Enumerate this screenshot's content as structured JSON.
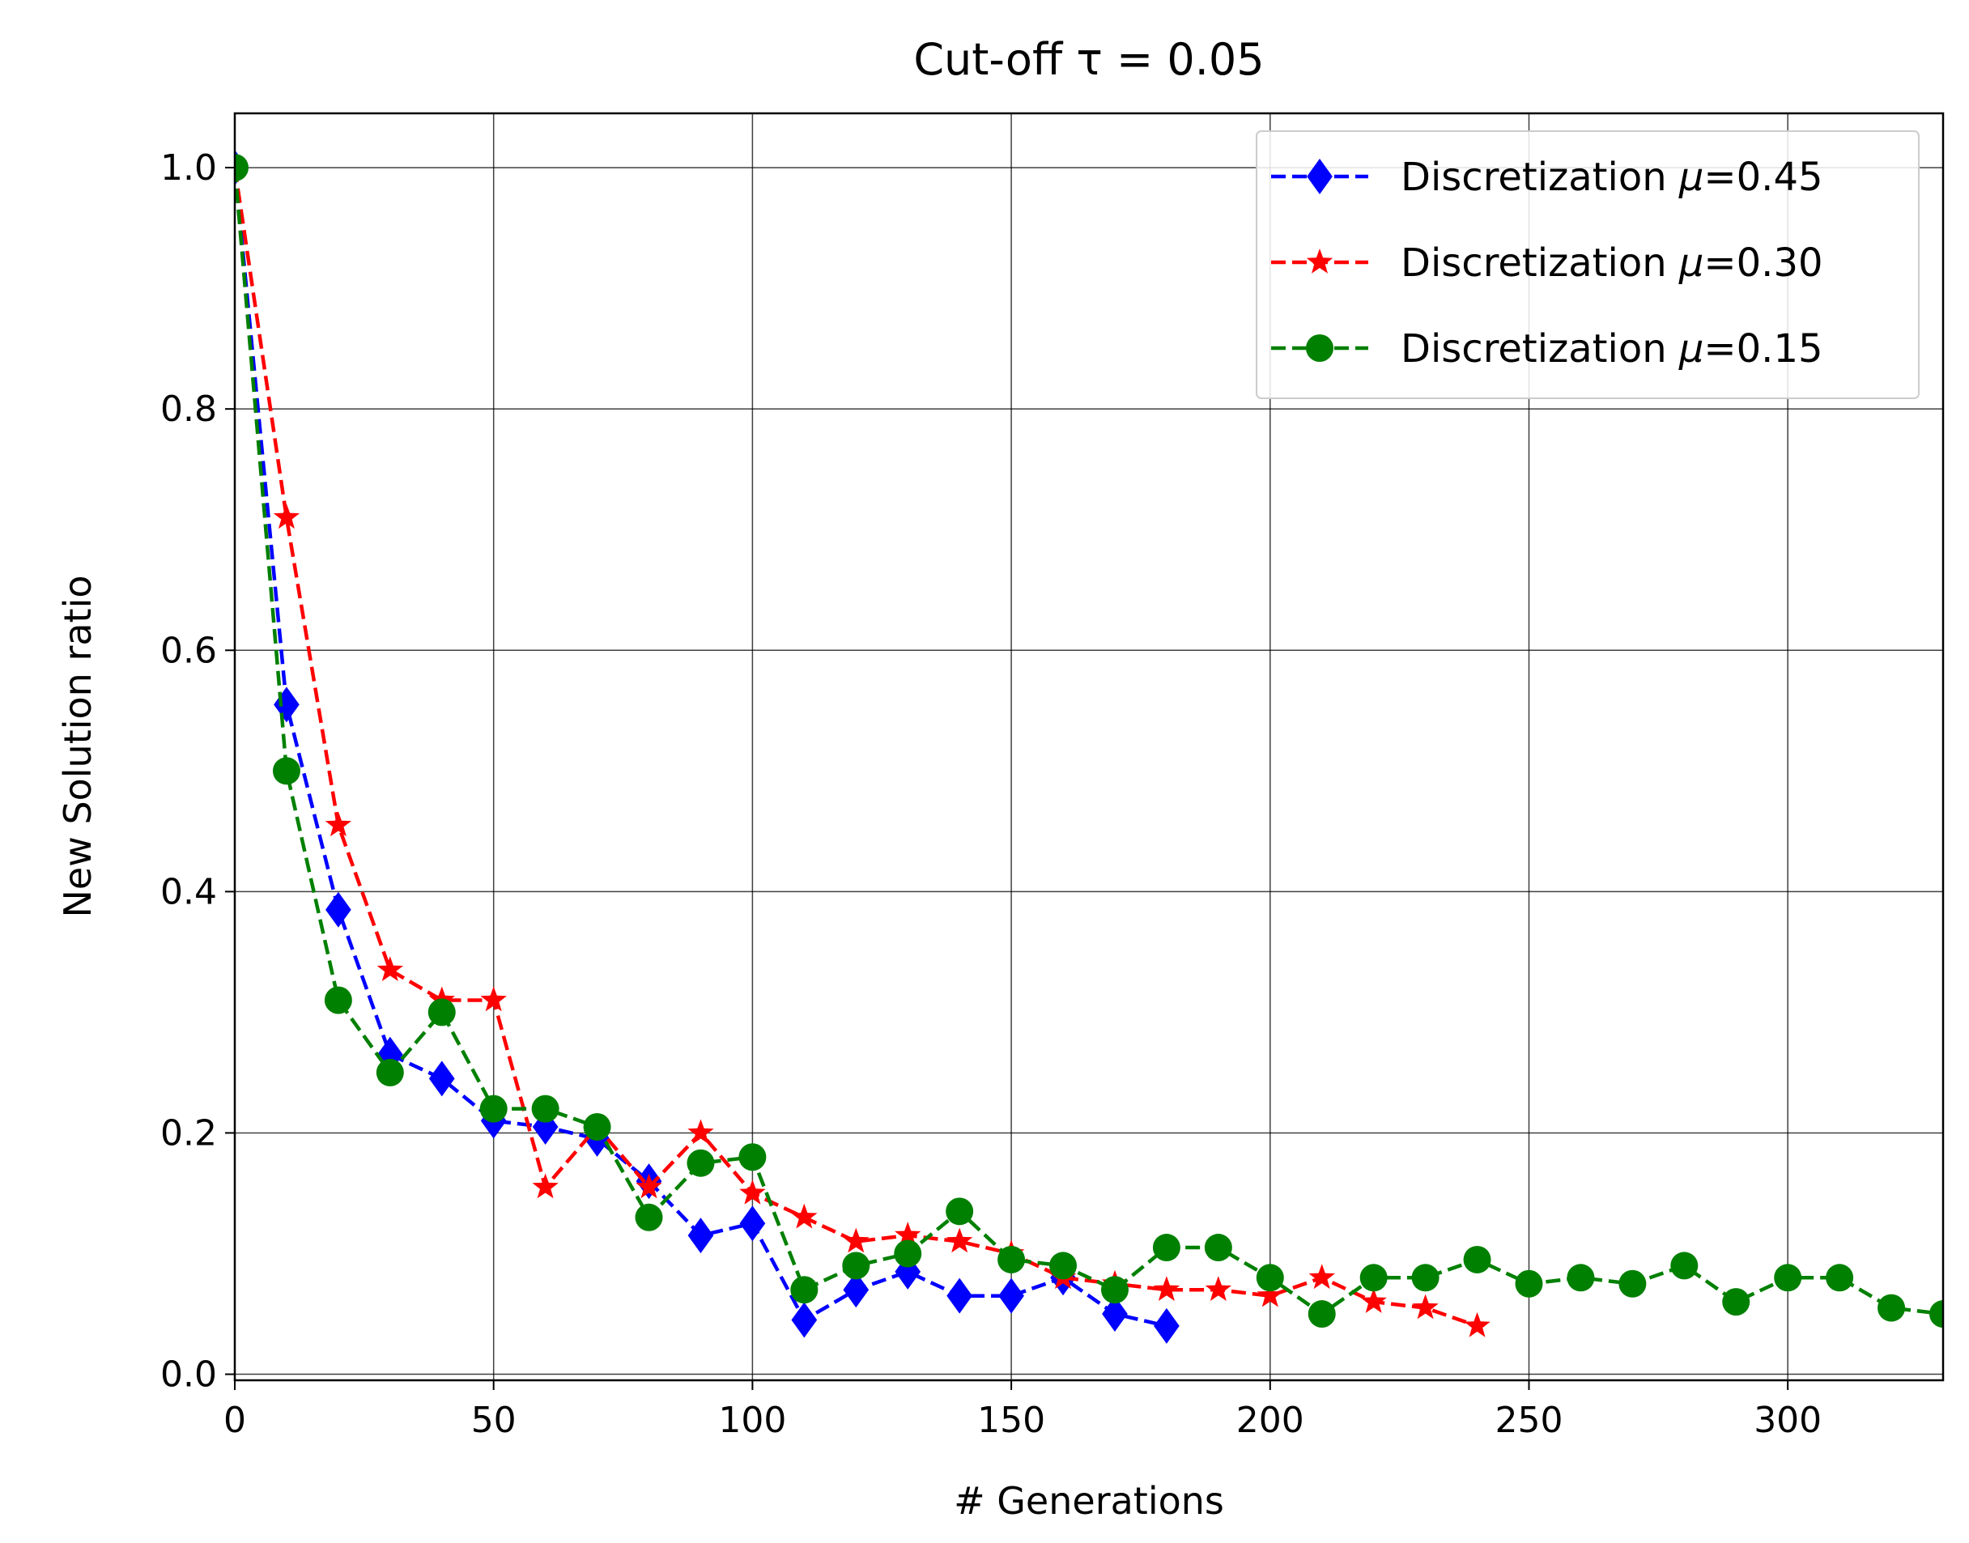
{
  "chart_data": {
    "type": "line",
    "title": "Cut-off τ = 0.05",
    "xlabel": "# Generations",
    "ylabel": "New Solution ratio",
    "xlim": [
      0,
      330
    ],
    "ylim": [
      -0.005,
      1.045
    ],
    "xticks": [
      0,
      50,
      100,
      150,
      200,
      250,
      300
    ],
    "xtick_labels": [
      "0",
      "50",
      "100",
      "150",
      "200",
      "250",
      "300"
    ],
    "yticks": [
      0.0,
      0.2,
      0.4,
      0.6,
      0.8,
      1.0
    ],
    "ytick_labels": [
      "0.0",
      "0.2",
      "0.4",
      "0.6",
      "0.8",
      "1.0"
    ],
    "grid": true,
    "legend_position": "top-right",
    "series": [
      {
        "name": "Discretization μ=0.45",
        "legend_prefix": "Discretization ",
        "legend_symbol": "μ",
        "legend_suffix": "=0.45",
        "color": "#0000ff",
        "marker": "diamond",
        "x": [
          0,
          10,
          20,
          30,
          40,
          50,
          60,
          70,
          80,
          90,
          100,
          110,
          120,
          130,
          140,
          150,
          160,
          170,
          180
        ],
        "y": [
          1.0,
          0.555,
          0.385,
          0.265,
          0.245,
          0.21,
          0.205,
          0.195,
          0.16,
          0.115,
          0.125,
          0.045,
          0.07,
          0.085,
          0.065,
          0.065,
          0.08,
          0.05,
          0.04
        ]
      },
      {
        "name": "Discretization μ=0.30",
        "legend_prefix": "Discretization ",
        "legend_symbol": "μ",
        "legend_suffix": "=0.30",
        "color": "#ff0000",
        "marker": "star",
        "x": [
          0,
          10,
          20,
          30,
          40,
          50,
          60,
          70,
          80,
          90,
          100,
          110,
          120,
          130,
          140,
          150,
          160,
          170,
          180,
          190,
          200,
          210,
          220,
          230,
          240
        ],
        "y": [
          1.0,
          0.71,
          0.455,
          0.335,
          0.31,
          0.31,
          0.155,
          0.205,
          0.155,
          0.2,
          0.15,
          0.13,
          0.11,
          0.115,
          0.11,
          0.1,
          0.08,
          0.075,
          0.07,
          0.07,
          0.065,
          0.08,
          0.06,
          0.055,
          0.04
        ]
      },
      {
        "name": "Discretization μ=0.15",
        "legend_prefix": "Discretization ",
        "legend_symbol": "μ",
        "legend_suffix": "=0.15",
        "color": "#008000",
        "marker": "circle",
        "x": [
          0,
          10,
          20,
          30,
          40,
          50,
          60,
          70,
          80,
          90,
          100,
          110,
          120,
          130,
          140,
          150,
          160,
          170,
          180,
          190,
          200,
          210,
          220,
          230,
          240,
          250,
          260,
          270,
          280,
          290,
          300,
          310,
          320,
          330
        ],
        "y": [
          1.0,
          0.5,
          0.31,
          0.25,
          0.3,
          0.22,
          0.22,
          0.205,
          0.13,
          0.175,
          0.18,
          0.07,
          0.09,
          0.1,
          0.135,
          0.095,
          0.09,
          0.07,
          0.105,
          0.105,
          0.08,
          0.05,
          0.08,
          0.08,
          0.095,
          0.075,
          0.08,
          0.075,
          0.09,
          0.06,
          0.08,
          0.08,
          0.055,
          0.05
        ]
      }
    ]
  }
}
